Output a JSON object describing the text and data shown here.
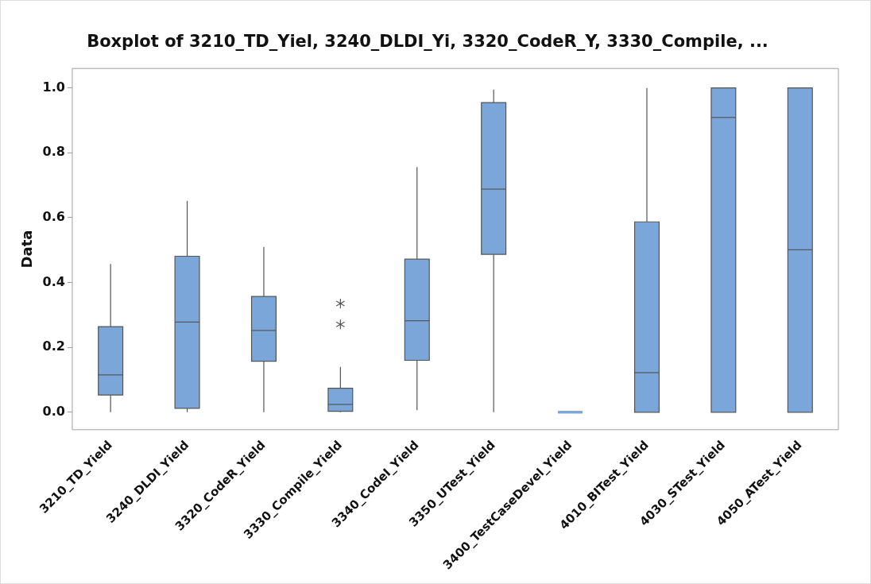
{
  "chart_data": {
    "type": "box",
    "title": "Boxplot of 3210_TD_Yiel, 3240_DLDI_Yi, 3320_CodeR_Y, 3330_Compile, ...",
    "ylabel": "Data",
    "categories": [
      "3210_TD_Yield",
      "3240_DLDI_Yield",
      "3320_CodeR_Yield",
      "3330_Compile_Yield",
      "3340_CodeI_Yield",
      "3350_UTest_Yield",
      "3400_TestCaseDevel_Yield",
      "4010_BITest_Yield",
      "4030_STest_Yield",
      "4050_ATest_Yield"
    ],
    "color": "#7ba6d9",
    "boxes": [
      {
        "low": 0,
        "q1": 0.053,
        "median": 0.115,
        "q3": 0.264,
        "high": 0.457
      },
      {
        "low": 0,
        "q1": 0.012,
        "median": 0.278,
        "q3": 0.481,
        "high": 0.652
      },
      {
        "low": 0,
        "q1": 0.157,
        "median": 0.252,
        "q3": 0.357,
        "high": 0.51
      },
      {
        "low": 0,
        "q1": 0.003,
        "median": 0.024,
        "q3": 0.074,
        "high": 0.14,
        "outliers": [
          0.271,
          0.335
        ]
      },
      {
        "low": 0.006,
        "q1": 0.16,
        "median": 0.282,
        "q3": 0.472,
        "high": 0.756
      },
      {
        "low": 0,
        "q1": 0.487,
        "median": 0.688,
        "q3": 0.955,
        "high": 0.995
      },
      {
        "low": 0,
        "q1": 0,
        "median": 0,
        "q3": 0,
        "high": 0
      },
      {
        "low": 0,
        "q1": 0,
        "median": 0.122,
        "q3": 0.587,
        "high": 1
      },
      {
        "low": 0,
        "q1": 0,
        "median": 0.909,
        "q3": 1,
        "high": 1
      },
      {
        "low": 0,
        "q1": 0,
        "median": 0.501,
        "q3": 1,
        "high": 1
      }
    ],
    "ylim": [
      -0.054,
      1.06
    ],
    "yticks": [
      {
        "value": 0,
        "label": "0.0"
      },
      0.2,
      0.4,
      0.6,
      0.8,
      {
        "value": 1,
        "label": "1.0"
      }
    ],
    "grid": false,
    "legend": false
  }
}
